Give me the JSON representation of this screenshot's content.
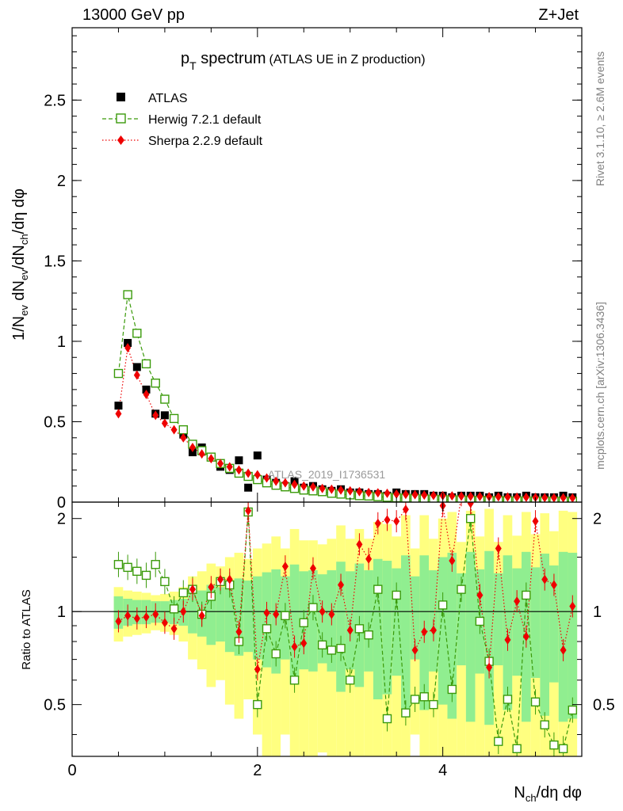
{
  "header": {
    "left_label": "13000 GeV pp",
    "right_label": "Z+Jet",
    "side_label_top": "Rivet 3.1.10, ≥ 2.6M events",
    "side_label_bottom": "mcplots.cern.ch [arXiv:1306.3436]"
  },
  "chart_data": {
    "type": "scatter",
    "title": "p_T spectrum",
    "title_parts": {
      "main": "p",
      "sub": "T",
      "rest": " spectrum",
      "note": "(ATLAS UE in Z production)"
    },
    "watermark": "ATLAS_2019_I1736531",
    "xlabel": "N_ch/dη dφ",
    "ylabel": "1/N_ev dN_ev/dN_ch/dη dφ",
    "ratio_ylabel": "Ratio to ATLAS",
    "xlim": [
      0,
      5.5
    ],
    "ylim": [
      0,
      2.95
    ],
    "ratio_ylim": [
      0.34,
      2.26
    ],
    "xticks": [
      0,
      2,
      4
    ],
    "yticks": [
      0.5,
      1,
      1.5,
      2,
      2.5
    ],
    "ytick_labels": [
      "0.5",
      "1",
      "1.5",
      "2",
      "2.5"
    ],
    "ratio_yticks": [
      0.5,
      1,
      2
    ],
    "ratio_ytick_labels": [
      "0.5",
      "1",
      "2"
    ],
    "grid": false,
    "legend_position": "top-left",
    "colors": {
      "atlas": "#000000",
      "herwig": "#3a9a0a",
      "sherpa": "#ee0000",
      "band_inner": "#90ee90",
      "band_outer": "#ffff80"
    },
    "x": [
      0.5,
      0.6,
      0.7,
      0.8,
      0.9,
      1.0,
      1.1,
      1.2,
      1.3,
      1.4,
      1.5,
      1.6,
      1.7,
      1.8,
      1.9,
      2.0,
      2.1,
      2.2,
      2.3,
      2.4,
      2.5,
      2.6,
      2.7,
      2.8,
      2.9,
      3.0,
      3.1,
      3.2,
      3.3,
      3.4,
      3.5,
      3.6,
      3.7,
      3.8,
      3.9,
      4.0,
      4.1,
      4.2,
      4.3,
      4.4,
      4.5,
      4.6,
      4.7,
      4.8,
      4.9,
      5.0,
      5.1,
      5.2,
      5.3,
      5.4
    ],
    "series": [
      {
        "name": "ATLAS",
        "marker": "filled-square",
        "values": [
          0.6,
          0.99,
          0.84,
          0.7,
          0.55,
          0.54,
          0.52,
          0.42,
          0.31,
          0.34,
          0.28,
          0.22,
          0.2,
          0.26,
          0.09,
          0.29,
          0.14,
          0.12,
          0.1,
          0.13,
          0.09,
          0.1,
          0.08,
          0.07,
          0.08,
          0.06,
          0.06,
          0.05,
          0.05,
          0.04,
          0.06,
          0.05,
          0.05,
          0.05,
          0.04,
          0.04,
          0.03,
          0.04,
          0.04,
          0.04,
          0.03,
          0.04,
          0.03,
          0.03,
          0.04,
          0.03,
          0.03,
          0.03,
          0.04,
          0.03
        ]
      },
      {
        "name": "Herwig 7.2.1 default",
        "marker": "open-square",
        "line": "dashed",
        "values": [
          0.8,
          1.29,
          1.05,
          0.86,
          0.74,
          0.64,
          0.52,
          0.45,
          0.36,
          0.32,
          0.28,
          0.24,
          0.21,
          0.18,
          0.16,
          0.14,
          0.12,
          0.105,
          0.095,
          0.085,
          0.075,
          0.07,
          0.065,
          0.055,
          0.05,
          0.045,
          0.04,
          0.038,
          0.034,
          0.03,
          0.027,
          0.025,
          0.022,
          0.02,
          0.018,
          0.016,
          0.015,
          0.014,
          0.012,
          0.011,
          0.01,
          0.01,
          0.009,
          0.008,
          0.008,
          0.007,
          0.007,
          0.006,
          0.006,
          0.005
        ]
      },
      {
        "name": "Sherpa 2.2.9 default",
        "marker": "filled-diamond",
        "line": "dotted",
        "values": [
          0.55,
          0.96,
          0.79,
          0.67,
          0.54,
          0.49,
          0.45,
          0.4,
          0.34,
          0.3,
          0.27,
          0.24,
          0.22,
          0.2,
          0.18,
          0.17,
          0.15,
          0.13,
          0.12,
          0.11,
          0.1,
          0.095,
          0.085,
          0.08,
          0.075,
          0.07,
          0.065,
          0.06,
          0.058,
          0.055,
          0.05,
          0.048,
          0.046,
          0.044,
          0.042,
          0.04,
          0.039,
          0.037,
          0.036,
          0.035,
          0.034,
          0.033,
          0.032,
          0.031,
          0.03,
          0.029,
          0.028,
          0.027,
          0.027,
          0.026
        ]
      }
    ],
    "ratio": {
      "herwig": [
        1.42,
        1.39,
        1.35,
        1.31,
        1.42,
        1.25,
        1.02,
        1.15,
        1.18,
        0.98,
        1.12,
        1.25,
        1.22,
        0.8,
        2.1,
        0.5,
        0.88,
        0.73,
        0.97,
        0.6,
        0.92,
        1.03,
        0.78,
        0.75,
        0.76,
        0.6,
        0.88,
        0.84,
        1.18,
        0.45,
        1.13,
        0.47,
        0.52,
        0.53,
        0.5,
        1.05,
        0.56,
        1.18,
        2.0,
        0.93,
        0.69,
        0.38,
        0.52,
        0.36,
        1.13,
        0.51,
        0.43,
        0.37,
        0.36,
        0.48
      ],
      "sherpa": [
        0.93,
        0.97,
        0.95,
        0.96,
        0.98,
        0.92,
        0.88,
        1.0,
        1.18,
        0.97,
        1.2,
        1.27,
        1.27,
        0.86,
        2.12,
        0.65,
        0.99,
        0.98,
        1.4,
        0.77,
        0.79,
        1.38,
        1.0,
        0.98,
        1.22,
        0.87,
        1.65,
        1.48,
        1.93,
        1.98,
        1.96,
        2.14,
        0.75,
        0.86,
        0.87,
        2.2,
        1.46,
        2.38,
        2.24,
        1.13,
        0.66,
        1.6,
        0.81,
        1.08,
        0.83,
        1.96,
        1.27,
        1.22,
        0.75,
        1.04
      ],
      "band_inner": [
        0.12,
        0.1,
        0.09,
        0.09,
        0.08,
        0.08,
        0.09,
        0.1,
        0.15,
        0.17,
        0.22,
        0.2,
        0.26,
        0.28,
        0.26,
        0.3,
        0.34,
        0.37,
        0.3,
        0.42,
        0.35,
        0.36,
        0.32,
        0.36,
        0.45,
        0.35,
        0.43,
        0.36,
        0.48,
        0.46,
        0.38,
        0.52,
        0.3,
        0.52,
        0.36,
        0.5,
        0.55,
        0.33,
        0.56,
        0.37,
        0.57,
        0.33,
        0.52,
        0.38,
        0.56,
        0.39,
        0.54,
        0.41,
        0.56,
        0.55
      ],
      "band_outer": [
        0.2,
        0.17,
        0.16,
        0.15,
        0.13,
        0.14,
        0.16,
        0.2,
        0.3,
        0.35,
        0.43,
        0.4,
        0.5,
        0.55,
        0.48,
        0.6,
        0.66,
        0.75,
        0.6,
        0.85,
        0.7,
        0.7,
        0.65,
        0.72,
        0.9,
        0.72,
        0.85,
        0.72,
        0.95,
        0.92,
        0.75,
        1.05,
        0.6,
        1.05,
        0.72,
        1.0,
        1.1,
        0.68,
        1.12,
        0.75,
        1.15,
        0.68,
        1.05,
        0.76,
        1.1,
        0.78,
        1.08,
        0.82,
        1.12,
        1.1
      ]
    }
  }
}
